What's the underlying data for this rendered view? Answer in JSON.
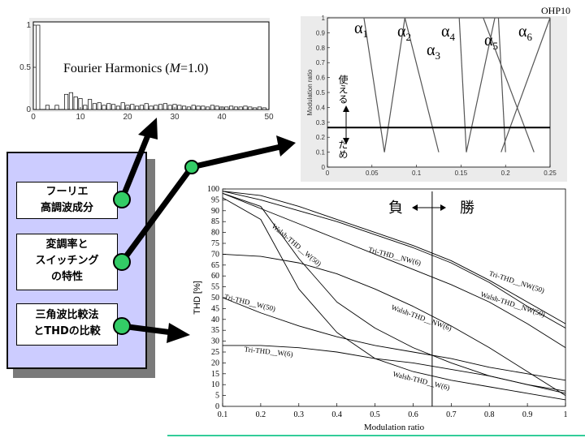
{
  "slide_number": "OHP10",
  "boxes": {
    "fourier": [
      "フーリエ",
      "高調波成分"
    ],
    "modulation": [
      "変調率と",
      "スイッチング",
      "の特性"
    ],
    "compare": [
      "三角波比較法",
      "とTHDの比較"
    ]
  },
  "colors": {
    "panel": "#ccccff",
    "shadow": "#7a7a7a",
    "dot": "#33cc66",
    "band": "#33cc99"
  },
  "chart_data": [
    {
      "type": "bar",
      "title_prefix": "Fourier Harmonics (",
      "title_var": "M",
      "title_suffix": "=1.0)",
      "xlim": [
        0,
        50
      ],
      "ylim": [
        0,
        1
      ],
      "xticks": [
        "0",
        "10",
        "20",
        "30",
        "40",
        "50"
      ],
      "yticks": [
        "0",
        "0.5",
        "1"
      ],
      "x": [
        1,
        3,
        5,
        7,
        8,
        9,
        10,
        11,
        12,
        13,
        14,
        15,
        16,
        17,
        18,
        19,
        20,
        21,
        22,
        23,
        24,
        25,
        26,
        27,
        28,
        29,
        30,
        31,
        32,
        33,
        34,
        35,
        36,
        37,
        38,
        39,
        40,
        41,
        42,
        43,
        44,
        45,
        46,
        47,
        48,
        49
      ],
      "values": [
        1.0,
        0.05,
        0.05,
        0.18,
        0.2,
        0.15,
        0.13,
        0.05,
        0.12,
        0.07,
        0.08,
        0.05,
        0.07,
        0.06,
        0.04,
        0.08,
        0.05,
        0.06,
        0.04,
        0.05,
        0.07,
        0.04,
        0.05,
        0.06,
        0.07,
        0.05,
        0.06,
        0.05,
        0.04,
        0.03,
        0.05,
        0.04,
        0.04,
        0.03,
        0.05,
        0.04,
        0.03,
        0.03,
        0.04,
        0.03,
        0.03,
        0.04,
        0.03,
        0.02,
        0.03,
        0.02
      ]
    },
    {
      "type": "line",
      "ylabel": "Modulation ratio",
      "xlim": [
        0,
        0.25
      ],
      "ylim": [
        0,
        1
      ],
      "xticks": [
        "0",
        "0.05",
        "0.1",
        "0.15",
        "0.2",
        "0.25"
      ],
      "yticks": [
        "0",
        "0.1",
        "0.2",
        "0.3",
        "0.4",
        "0.5",
        "0.6",
        "0.7",
        "0.8",
        "0.9",
        "1"
      ],
      "threshold": 0.265,
      "label_use": "使える",
      "label_bad": "だめ",
      "alpha_symbol": "α",
      "alpha_labels": [
        "1",
        "2",
        "3",
        "4",
        "5",
        "6"
      ],
      "series": [
        {
          "x": [
            0.041,
            0.064
          ],
          "y": [
            1,
            0.1
          ]
        },
        {
          "x": [
            0.064,
            0.087
          ],
          "y": [
            0.1,
            1
          ]
        },
        {
          "x": [
            0.087,
            0.125
          ],
          "y": [
            1,
            0.1
          ]
        },
        {
          "x": [
            0.148,
            0.156
          ],
          "y": [
            1,
            0.1
          ]
        },
        {
          "x": [
            0.156,
            0.188
          ],
          "y": [
            0.1,
            1
          ]
        },
        {
          "x": [
            0.175,
            0.232
          ],
          "y": [
            1,
            0.1
          ]
        },
        {
          "x": [
            0.195,
            0.25
          ],
          "y": [
            0.1,
            1
          ]
        },
        {
          "x": [
            0.192,
            0.2
          ],
          "y": [
            1,
            0.1
          ]
        }
      ]
    },
    {
      "type": "line",
      "xlabel": "Modulation ratio",
      "ylabel": "THD [%]",
      "xlim": [
        0.1,
        1
      ],
      "ylim": [
        0,
        100
      ],
      "xticks": [
        "0.1",
        "0.2",
        "0.3",
        "0.4",
        "0.5",
        "0.6",
        "0.7",
        "0.8",
        "0.9",
        "1"
      ],
      "yticks": [
        "0",
        "5",
        "10",
        "15",
        "20",
        "25",
        "30",
        "35",
        "40",
        "45",
        "50",
        "55",
        "60",
        "65",
        "70",
        "75",
        "80",
        "85",
        "90",
        "95",
        "100"
      ],
      "vline": 0.65,
      "label_lose": "負",
      "label_win": "勝",
      "series": [
        {
          "name": "Tri-THD__NW(50)",
          "x": [
            0.1,
            0.2,
            0.3,
            0.4,
            0.5,
            0.6,
            0.7,
            0.8,
            0.9,
            1.0
          ],
          "y": [
            99,
            97,
            92,
            86,
            80,
            74,
            67,
            58,
            48,
            38
          ]
        },
        {
          "name": "Walsh-THD__NW(50)",
          "x": [
            0.1,
            0.2,
            0.3,
            0.4,
            0.5,
            0.6,
            0.7,
            0.8,
            0.9,
            1.0
          ],
          "y": [
            99,
            95,
            90,
            85,
            79,
            73,
            66,
            57,
            46,
            36
          ]
        },
        {
          "name": "Tri-THD__NW(6)",
          "x": [
            0.1,
            0.2,
            0.3,
            0.4,
            0.5,
            0.6,
            0.7,
            0.8,
            0.9,
            1.0
          ],
          "y": [
            98,
            91,
            84,
            77,
            70,
            63,
            56,
            48,
            38,
            27
          ]
        },
        {
          "name": "Walsh-THD__NW(6)",
          "x": [
            0.1,
            0.2,
            0.3,
            0.4,
            0.5,
            0.6,
            0.7,
            0.8,
            0.9,
            1.0
          ],
          "y": [
            70,
            69,
            66,
            61,
            54,
            46,
            37,
            27,
            16,
            5
          ]
        },
        {
          "name": "Walsh-THD__W(50)",
          "x": [
            0.1,
            0.2,
            0.3,
            0.4,
            0.5,
            0.6,
            0.7,
            0.8,
            0.9,
            1.0
          ],
          "y": [
            98,
            92,
            68,
            48,
            36,
            27,
            20,
            14,
            10,
            7
          ]
        },
        {
          "name": "Tri-THD__W(50)",
          "x": [
            0.1,
            0.2,
            0.3,
            0.4,
            0.5,
            0.6,
            0.7,
            0.8,
            0.9,
            1.0
          ],
          "y": [
            50,
            43,
            37,
            32,
            28,
            25,
            22,
            18,
            15,
            12
          ]
        },
        {
          "name": "Tri-THD__W(6)",
          "x": [
            0.1,
            0.2,
            0.3,
            0.4,
            0.5,
            0.6,
            0.7,
            0.8,
            0.9,
            1.0
          ],
          "y": [
            28,
            28,
            27,
            25,
            22,
            20,
            17,
            14,
            10,
            6
          ]
        },
        {
          "name": "Walsh-THD__W(6)",
          "x": [
            0.1,
            0.2,
            0.3,
            0.4,
            0.5,
            0.6,
            0.7,
            0.8,
            0.9,
            1.0
          ],
          "y": [
            96,
            86,
            54,
            34,
            22,
            16,
            12,
            9,
            6,
            3
          ]
        }
      ]
    }
  ]
}
